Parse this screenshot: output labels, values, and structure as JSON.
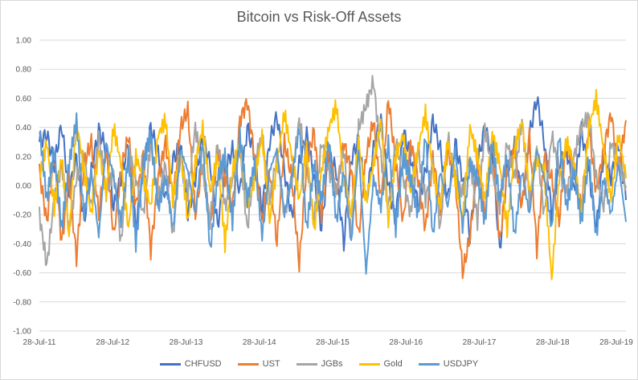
{
  "chart_data": {
    "type": "line",
    "title": "Bitcoin vs Risk-Off Assets",
    "xlabel": "",
    "ylabel": "",
    "ylim": [
      -1.0,
      1.0
    ],
    "y_ticks": [
      "1.00",
      "0.80",
      "0.60",
      "0.40",
      "0.20",
      "0.00",
      "-0.20",
      "-0.40",
      "-0.60",
      "-0.80",
      "-1.00"
    ],
    "x_ticks": [
      "28-Jul-11",
      "28-Jul-12",
      "28-Jul-13",
      "28-Jul-14",
      "28-Jul-15",
      "28-Jul-16",
      "28-Jul-17",
      "28-Jul-18",
      "28-Jul-19"
    ],
    "grid": "horizontal",
    "legend": "bottom",
    "x_start": "2011-07-28",
    "x_end": "2019-07-28",
    "series": [
      {
        "name": "CHFUSD",
        "color": "#4472c4",
        "values": [
          0.3,
          0.35,
          0.15,
          0.42,
          -0.05,
          0.2,
          -0.25,
          0.1,
          0.38,
          0.25,
          -0.15,
          0.05,
          0.3,
          -0.3,
          0.12,
          0.4,
          0.22,
          -0.1,
          0.18,
          0.28,
          -0.2,
          0.05,
          0.33,
          0.15,
          -0.28,
          0.1,
          0.25,
          -0.05,
          0.4,
          0.2,
          -0.18,
          0.3,
          0.48,
          0.1,
          -0.22,
          0.15,
          0.35,
          0.05,
          -0.3,
          0.22,
          0.1,
          -0.4,
          0.18,
          0.32,
          -0.12,
          0.25,
          0.45,
          0.0,
          -0.25,
          0.38,
          0.2,
          -0.15,
          0.1,
          0.45,
          0.25,
          -0.1,
          0.3,
          0.05,
          -0.35,
          0.15,
          0.4,
          0.2,
          -0.45,
          0.1,
          0.28,
          -0.15,
          0.35,
          0.6,
          0.3,
          -0.2,
          0.15,
          0.25,
          -0.05,
          0.38,
          0.1,
          -0.3,
          0.22,
          0.05,
          0.3,
          -0.1
        ]
      },
      {
        "name": "UST",
        "color": "#ed7d31",
        "values": [
          0.1,
          -0.25,
          0.2,
          -0.4,
          0.05,
          -0.5,
          0.15,
          0.3,
          -0.2,
          0.25,
          -0.35,
          0.1,
          0.35,
          -0.15,
          0.22,
          -0.45,
          0.05,
          0.3,
          -0.1,
          0.4,
          0.52,
          -0.2,
          0.15,
          -0.3,
          0.25,
          0.05,
          -0.15,
          0.45,
          0.58,
          0.2,
          -0.25,
          0.1,
          -0.4,
          0.3,
          0.05,
          -0.55,
          0.15,
          0.38,
          -0.2,
          0.25,
          -0.05,
          0.3,
          0.1,
          -0.35,
          0.2,
          0.45,
          -0.1,
          0.6,
          0.15,
          -0.25,
          0.3,
          0.05,
          -0.3,
          0.2,
          -0.15,
          0.25,
          0.05,
          -0.6,
          -0.35,
          0.15,
          -0.2,
          0.3,
          -0.4,
          0.1,
          0.25,
          -0.15,
          0.35,
          -0.45,
          0.2,
          0.05,
          -0.25,
          0.3,
          0.1,
          -0.15,
          0.4,
          -0.05,
          0.25,
          0.5,
          0.1,
          0.45
        ]
      },
      {
        "name": "JGBs",
        "color": "#a5a5a5",
        "values": [
          -0.2,
          -0.55,
          -0.1,
          0.15,
          -0.3,
          0.05,
          0.2,
          -0.15,
          0.35,
          -0.05,
          0.1,
          -0.4,
          0.25,
          0.05,
          -0.2,
          0.3,
          -0.1,
          0.15,
          -0.35,
          0.2,
          -0.05,
          0.4,
          0.1,
          -0.25,
          0.3,
          -0.15,
          0.05,
          0.25,
          -0.3,
          0.15,
          0.35,
          -0.1,
          0.2,
          -0.2,
          0.05,
          0.45,
          0.15,
          -0.25,
          0.3,
          0.1,
          -0.05,
          0.25,
          -0.35,
          0.4,
          0.55,
          0.72,
          0.2,
          -0.15,
          0.3,
          0.05,
          -0.2,
          0.25,
          -0.1,
          0.15,
          -0.3,
          0.35,
          0.05,
          -0.05,
          0.2,
          -0.25,
          0.4,
          0.1,
          -0.15,
          0.3,
          0.05,
          0.45,
          -0.1,
          0.25,
          -0.2,
          0.35,
          0.1,
          -0.05,
          0.2,
          0.4,
          0.48,
          0.05,
          -0.15,
          0.3,
          0.15,
          0.0
        ]
      },
      {
        "name": "Gold",
        "color": "#ffc000",
        "values": [
          0.05,
          0.3,
          -0.15,
          0.2,
          -0.35,
          0.45,
          0.1,
          -0.2,
          0.25,
          -0.05,
          0.4,
          0.15,
          -0.3,
          0.2,
          0.05,
          -0.15,
          0.35,
          0.45,
          -0.1,
          0.25,
          -0.25,
          0.15,
          0.4,
          -0.05,
          0.2,
          -0.4,
          0.1,
          0.3,
          -0.15,
          0.05,
          0.35,
          -0.25,
          0.15,
          0.5,
          0.2,
          -0.1,
          0.25,
          -0.3,
          0.1,
          0.4,
          0.55,
          0.05,
          -0.2,
          0.3,
          -0.1,
          0.15,
          0.45,
          -0.25,
          0.2,
          0.35,
          -0.05,
          0.25,
          0.5,
          0.1,
          -0.15,
          0.3,
          0.05,
          -0.25,
          0.4,
          0.2,
          -0.1,
          0.35,
          0.15,
          -0.3,
          0.25,
          0.45,
          -0.05,
          0.2,
          0.1,
          -0.65,
          0.05,
          0.3,
          0.15,
          -0.2,
          0.4,
          0.6,
          0.25,
          -0.1,
          0.35,
          0.05
        ]
      },
      {
        "name": "USDJPY",
        "color": "#5b9bd5",
        "values": [
          0.4,
          -0.1,
          0.25,
          -0.3,
          0.15,
          0.45,
          -0.2,
          0.1,
          -0.35,
          0.3,
          0.05,
          -0.25,
          0.2,
          -0.4,
          0.15,
          0.35,
          -0.15,
          0.05,
          -0.3,
          0.25,
          0.1,
          -0.2,
          0.3,
          -0.45,
          0.05,
          0.2,
          -0.25,
          0.35,
          -0.1,
          0.15,
          -0.35,
          0.1,
          0.25,
          -0.2,
          0.05,
          0.4,
          -0.3,
          0.15,
          -0.1,
          0.3,
          -0.25,
          0.1,
          -0.4,
          0.25,
          -0.6,
          0.05,
          -0.15,
          0.3,
          -0.3,
          0.2,
          0.05,
          -0.2,
          0.35,
          -0.35,
          0.1,
          -0.15,
          0.25,
          -0.3,
          0.15,
          0.05,
          -0.25,
          0.3,
          -0.1,
          0.2,
          -0.35,
          0.1,
          -0.2,
          0.25,
          0.05,
          -0.3,
          0.35,
          -0.15,
          0.1,
          -0.25,
          0.2,
          -0.35,
          0.05,
          -0.2,
          0.15,
          -0.25
        ]
      }
    ]
  }
}
